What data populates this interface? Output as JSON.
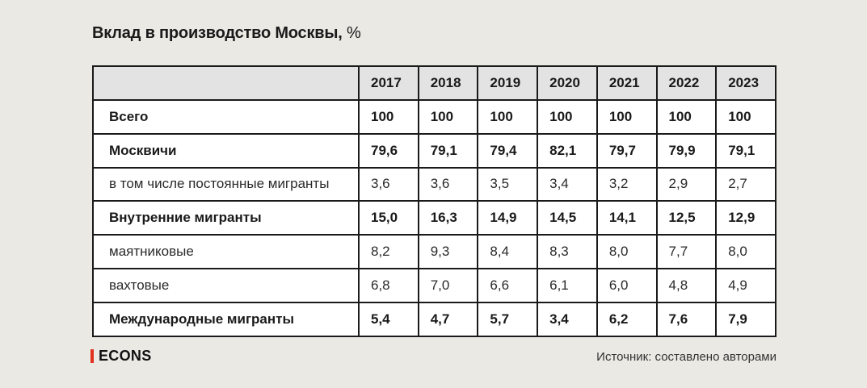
{
  "title": "Вклад в производство Москвы,",
  "title_unit": "%",
  "chart_data": {
    "type": "table",
    "title": "Вклад в производство Москвы, %",
    "columns": [
      "2017",
      "2018",
      "2019",
      "2020",
      "2021",
      "2022",
      "2023"
    ],
    "rows": [
      {
        "label": "Всего",
        "bold": true,
        "values": [
          "100",
          "100",
          "100",
          "100",
          "100",
          "100",
          "100"
        ]
      },
      {
        "label": "Москвичи",
        "bold": true,
        "values": [
          "79,6",
          "79,1",
          "79,4",
          "82,1",
          "79,7",
          "79,9",
          "79,1"
        ]
      },
      {
        "label": "в том числе постоянные мигранты",
        "bold": false,
        "values": [
          "3,6",
          "3,6",
          "3,5",
          "3,4",
          "3,2",
          "2,9",
          "2,7"
        ]
      },
      {
        "label": "Внутренние мигранты",
        "bold": true,
        "values": [
          "15,0",
          "16,3",
          "14,9",
          "14,5",
          "14,1",
          "12,5",
          "12,9"
        ]
      },
      {
        "label": "маятниковые",
        "bold": false,
        "values": [
          "8,2",
          "9,3",
          "8,4",
          "8,3",
          "8,0",
          "7,7",
          "8,0"
        ]
      },
      {
        "label": "вахтовые",
        "bold": false,
        "values": [
          "6,8",
          "7,0",
          "6,6",
          "6,1",
          "6,0",
          "4,8",
          "4,9"
        ]
      },
      {
        "label": "Международные мигранты",
        "bold": true,
        "values": [
          "5,4",
          "4,7",
          "5,7",
          "3,4",
          "6,2",
          "7,6",
          "7,9"
        ]
      }
    ]
  },
  "footer": {
    "logo": "ECONS",
    "logo_accent_color": "#e0301e",
    "source": "Источник: составлено авторами"
  }
}
